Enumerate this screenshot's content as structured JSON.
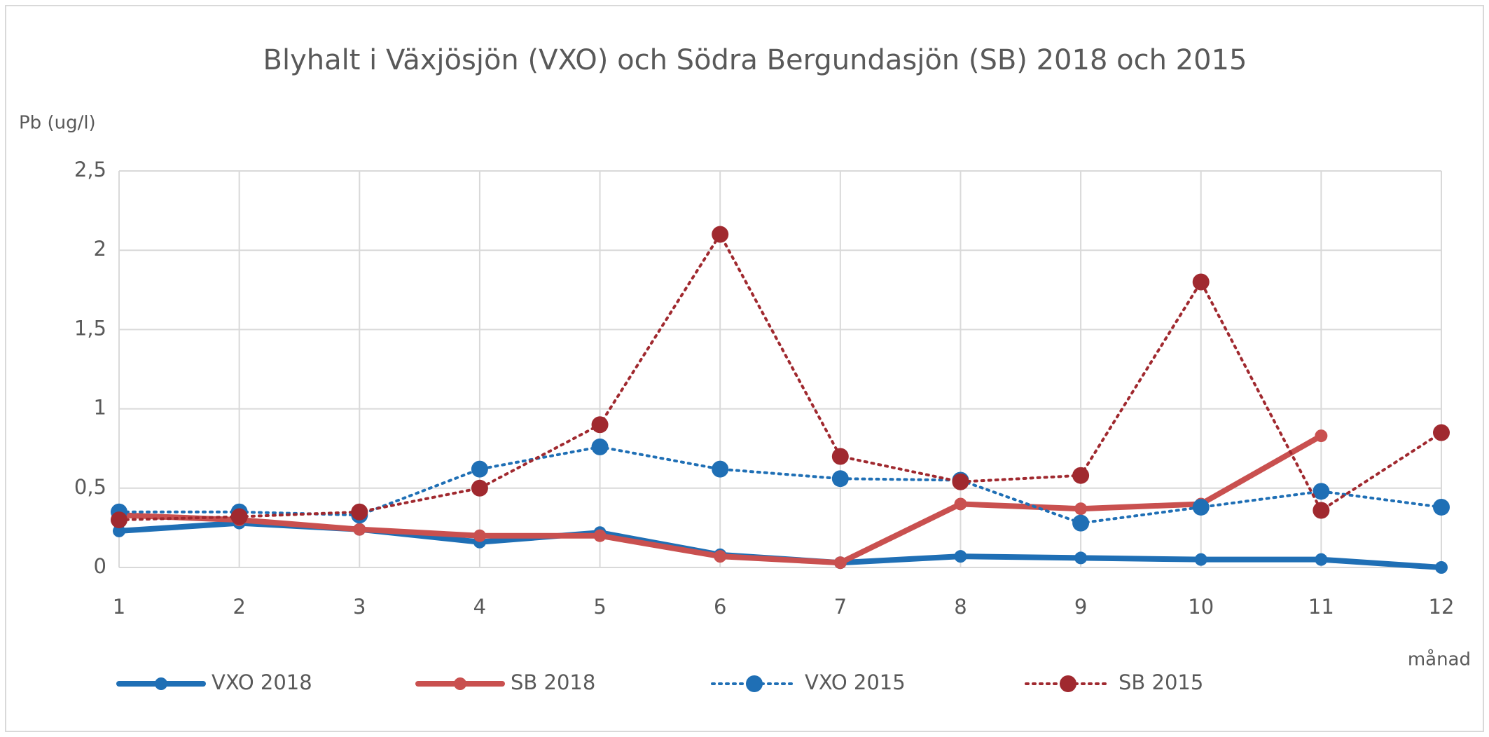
{
  "chart_data": {
    "type": "line",
    "title": "Blyhalt i Växjösjön (VXO) och Södra Bergundasjön (SB) 2018 och 2015",
    "y_label": "Pb (ug/l)",
    "x_label": "månad",
    "x": [
      1,
      2,
      3,
      4,
      5,
      6,
      7,
      8,
      9,
      10,
      11,
      12
    ],
    "xlim": [
      1,
      12
    ],
    "xticks": [
      1,
      2,
      3,
      4,
      5,
      6,
      7,
      8,
      9,
      10,
      11,
      12
    ],
    "ylim": [
      0,
      2.5
    ],
    "yticks": [
      0,
      {
        "value": 0.5,
        "label": "0,5"
      },
      1,
      {
        "value": 1.5,
        "label": "1,5"
      },
      2,
      {
        "value": 2.5,
        "label": "2,5"
      }
    ],
    "grid": true,
    "legend": "bottom",
    "series": [
      {
        "name": "VXO 2018",
        "color": "#1f6fb5",
        "line_style": "solid",
        "values": [
          0.23,
          0.28,
          0.24,
          0.16,
          0.22,
          0.08,
          0.03,
          0.07,
          0.06,
          0.05,
          0.05,
          0.0
        ]
      },
      {
        "name": "SB 2018",
        "color": "#c9504f",
        "line_style": "solid",
        "values": [
          0.33,
          0.3,
          0.24,
          0.2,
          0.2,
          0.07,
          0.03,
          0.4,
          0.37,
          0.4,
          0.83,
          null
        ]
      },
      {
        "name": "VXO 2015",
        "color": "#1f6fb5",
        "line_style": "dotted",
        "values": [
          0.35,
          0.35,
          0.33,
          0.62,
          0.76,
          0.62,
          0.56,
          0.55,
          0.28,
          0.38,
          0.48,
          0.38
        ]
      },
      {
        "name": "SB 2015",
        "color": "#a0292f",
        "line_style": "dotted",
        "values": [
          0.3,
          0.32,
          0.35,
          0.5,
          0.9,
          2.1,
          0.7,
          0.54,
          0.58,
          1.8,
          0.36,
          0.85
        ]
      }
    ]
  }
}
